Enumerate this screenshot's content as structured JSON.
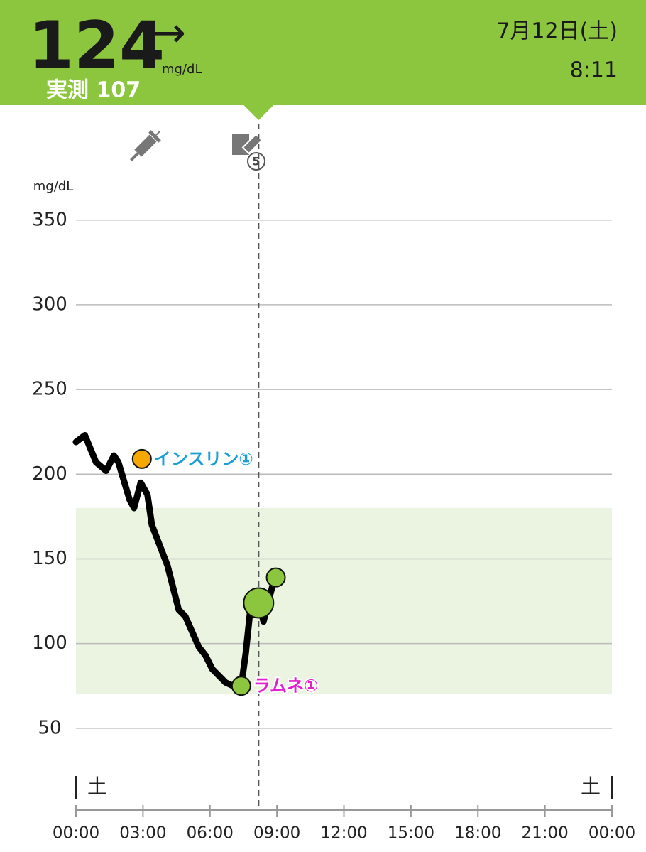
{
  "header": {
    "glucose": 124,
    "trend": "→",
    "unit": "mg/dL",
    "measured": "実測 107",
    "date": "7月12日(土)",
    "time": "8:11"
  },
  "icons": {
    "badge": "5"
  },
  "chart_data": {
    "type": "line",
    "y_unit": "mg/dL",
    "x": [
      0,
      0.4,
      0.9,
      1.35,
      1.7,
      1.9,
      2.4,
      2.6,
      2.9,
      3.2,
      3.4,
      4.1,
      4.6,
      4.9,
      5.5,
      5.8,
      6.1,
      6.4,
      6.7,
      7.2,
      7.4,
      7.6,
      7.8,
      8.2,
      8.4,
      8.7,
      8.9
    ],
    "series": [
      {
        "color": "#000000",
        "values": [
          219,
          223,
          207,
          202,
          211,
          207,
          185,
          180,
          195,
          188,
          170,
          146,
          120,
          116,
          98,
          93,
          85,
          81,
          77,
          74,
          75,
          94,
          119,
          124,
          113,
          129,
          139
        ]
      }
    ],
    "scans": {
      "color": "#8cc63f",
      "x": [
        7.4,
        8.18,
        8.95
      ],
      "values": [
        75,
        124,
        139
      ]
    },
    "events": [
      {
        "x": 2.95,
        "value": 209,
        "label": "インスリン①",
        "color": "#f7a800",
        "label_color": "#1a9fd6"
      },
      {
        "x": 7.4,
        "value": 75,
        "label": "ラムネ①",
        "label_color": "#e21fd0"
      }
    ],
    "cursor_x": 8.18,
    "target_range": [
      70,
      180
    ],
    "day_labels": [
      "土",
      "土"
    ],
    "xlim": [
      0,
      24
    ],
    "ylim": [
      0,
      365
    ],
    "xticks": [
      {
        "value": 0,
        "label": "00:00"
      },
      {
        "value": 3,
        "label": "03:00"
      },
      {
        "value": 6,
        "label": "06:00"
      },
      {
        "value": 9,
        "label": "09:00"
      },
      {
        "value": 12,
        "label": "12:00"
      },
      {
        "value": 15,
        "label": "15:00"
      },
      {
        "value": 18,
        "label": "18:00"
      },
      {
        "value": 21,
        "label": "21:00"
      },
      {
        "value": 24,
        "label": "00:00"
      }
    ],
    "yticks": [
      50,
      100,
      150,
      200,
      250,
      300,
      350
    ],
    "grid": true
  }
}
